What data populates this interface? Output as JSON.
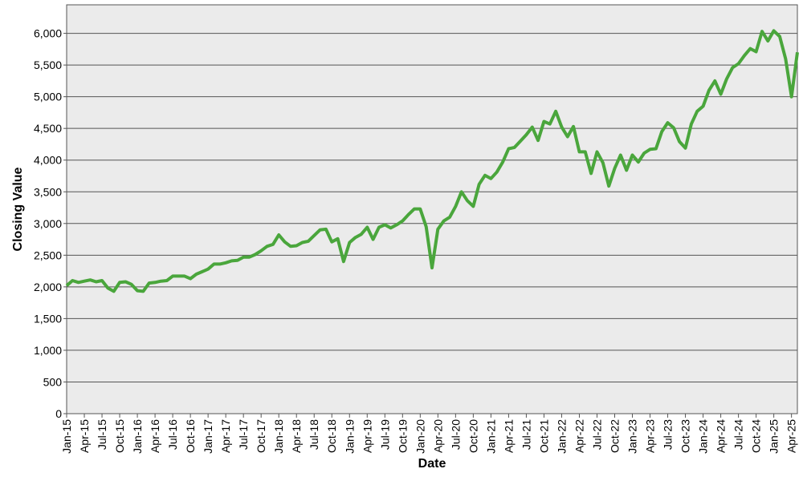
{
  "chart_data": {
    "type": "line",
    "x_label": "Date",
    "y_label": "Closing Value",
    "color": "#4aa63c",
    "grid": true,
    "x": [
      "2015-01",
      "2015-02",
      "2015-03",
      "2015-04",
      "2015-05",
      "2015-06",
      "2015-07",
      "2015-08",
      "2015-09",
      "2015-10",
      "2015-11",
      "2015-12",
      "2016-01",
      "2016-02",
      "2016-03",
      "2016-04",
      "2016-05",
      "2016-06",
      "2016-07",
      "2016-08",
      "2016-09",
      "2016-10",
      "2016-11",
      "2016-12",
      "2017-01",
      "2017-02",
      "2017-03",
      "2017-04",
      "2017-05",
      "2017-06",
      "2017-07",
      "2017-08",
      "2017-09",
      "2017-10",
      "2017-11",
      "2017-12",
      "2018-01",
      "2018-02",
      "2018-03",
      "2018-04",
      "2018-05",
      "2018-06",
      "2018-07",
      "2018-08",
      "2018-09",
      "2018-10",
      "2018-11",
      "2018-12",
      "2019-01",
      "2019-02",
      "2019-03",
      "2019-04",
      "2019-05",
      "2019-06",
      "2019-07",
      "2019-08",
      "2019-09",
      "2019-10",
      "2019-11",
      "2019-12",
      "2020-01",
      "2020-02",
      "2020-03",
      "2020-04",
      "2020-05",
      "2020-06",
      "2020-07",
      "2020-08",
      "2020-09",
      "2020-10",
      "2020-11",
      "2020-12",
      "2021-01",
      "2021-02",
      "2021-03",
      "2021-04",
      "2021-05",
      "2021-06",
      "2021-07",
      "2021-08",
      "2021-09",
      "2021-10",
      "2021-11",
      "2021-12",
      "2022-01",
      "2022-02",
      "2022-03",
      "2022-04",
      "2022-05",
      "2022-06",
      "2022-07",
      "2022-08",
      "2022-09",
      "2022-10",
      "2022-11",
      "2022-12",
      "2023-01",
      "2023-02",
      "2023-03",
      "2023-04",
      "2023-05",
      "2023-06",
      "2023-07",
      "2023-08",
      "2023-09",
      "2023-10",
      "2023-11",
      "2023-12",
      "2024-01",
      "2024-02",
      "2024-03",
      "2024-04",
      "2024-05",
      "2024-06",
      "2024-07",
      "2024-08",
      "2024-09",
      "2024-10",
      "2024-11",
      "2024-12",
      "2025-01",
      "2025-02",
      "2025-03",
      "2025-04",
      "2025-05"
    ],
    "values": [
      2020,
      2100,
      2070,
      2090,
      2110,
      2080,
      2100,
      1980,
      1930,
      2070,
      2080,
      2040,
      1940,
      1930,
      2060,
      2070,
      2090,
      2100,
      2170,
      2170,
      2170,
      2130,
      2200,
      2240,
      2280,
      2360,
      2360,
      2380,
      2410,
      2420,
      2470,
      2470,
      2510,
      2570,
      2640,
      2670,
      2820,
      2710,
      2640,
      2650,
      2700,
      2720,
      2810,
      2900,
      2910,
      2710,
      2760,
      2400,
      2700,
      2780,
      2830,
      2940,
      2750,
      2940,
      2980,
      2930,
      2980,
      3040,
      3140,
      3230,
      3230,
      2950,
      2300,
      2910,
      3040,
      3100,
      3270,
      3500,
      3360,
      3270,
      3620,
      3760,
      3710,
      3810,
      3970,
      4180,
      4200,
      4300,
      4400,
      4520,
      4310,
      4610,
      4570,
      4770,
      4520,
      4370,
      4530,
      4130,
      4130,
      3790,
      4130,
      3960,
      3590,
      3870,
      4080,
      3840,
      4080,
      3970,
      4110,
      4170,
      4180,
      4450,
      4590,
      4510,
      4290,
      4190,
      4570,
      4770,
      4850,
      5100,
      5250,
      5040,
      5280,
      5460,
      5520,
      5650,
      5760,
      5710,
      6030,
      5880,
      6040,
      5950,
      5600,
      5000,
      5700
    ],
    "xlim": [
      "2015-01",
      "2025-05"
    ],
    "ylim": [
      0,
      6450
    ],
    "yticks": [
      0,
      500,
      {
        "value": 1000,
        "label": "1,000"
      },
      {
        "value": 1500,
        "label": "1,500"
      },
      {
        "value": 2000,
        "label": "2,000"
      },
      {
        "value": 2500,
        "label": "2,500"
      },
      {
        "value": 3000,
        "label": "3,000"
      },
      {
        "value": 3500,
        "label": "3,500"
      },
      {
        "value": 4000,
        "label": "4,000"
      },
      {
        "value": 4500,
        "label": "4,500"
      },
      {
        "value": 5000,
        "label": "5,000"
      },
      {
        "value": 5500,
        "label": "5,500"
      },
      {
        "value": 6000,
        "label": "6,000"
      }
    ],
    "xticks": [
      {
        "value": "2015-01",
        "label": "Jan-15"
      },
      {
        "value": "2015-04",
        "label": "Apr-15"
      },
      {
        "value": "2015-07",
        "label": "Jul-15"
      },
      {
        "value": "2015-10",
        "label": "Oct-15"
      },
      {
        "value": "2016-01",
        "label": "Jan-16"
      },
      {
        "value": "2016-04",
        "label": "Apr-16"
      },
      {
        "value": "2016-07",
        "label": "Jul-16"
      },
      {
        "value": "2016-10",
        "label": "Oct-16"
      },
      {
        "value": "2017-01",
        "label": "Jan-17"
      },
      {
        "value": "2017-04",
        "label": "Apr-17"
      },
      {
        "value": "2017-07",
        "label": "Jul-17"
      },
      {
        "value": "2017-10",
        "label": "Oct-17"
      },
      {
        "value": "2018-01",
        "label": "Jan-18"
      },
      {
        "value": "2018-04",
        "label": "Apr-18"
      },
      {
        "value": "2018-07",
        "label": "Jul-18"
      },
      {
        "value": "2018-10",
        "label": "Oct-18"
      },
      {
        "value": "2019-01",
        "label": "Jan-19"
      },
      {
        "value": "2019-04",
        "label": "Apr-19"
      },
      {
        "value": "2019-07",
        "label": "Jul-19"
      },
      {
        "value": "2019-10",
        "label": "Oct-19"
      },
      {
        "value": "2020-01",
        "label": "Jan-20"
      },
      {
        "value": "2020-04",
        "label": "Apr-20"
      },
      {
        "value": "2020-07",
        "label": "Jul-20"
      },
      {
        "value": "2020-10",
        "label": "Oct-20"
      },
      {
        "value": "2021-01",
        "label": "Jan-21"
      },
      {
        "value": "2021-04",
        "label": "Apr-21"
      },
      {
        "value": "2021-07",
        "label": "Jul-21"
      },
      {
        "value": "2021-10",
        "label": "Oct-21"
      },
      {
        "value": "2022-01",
        "label": "Jan-22"
      },
      {
        "value": "2022-04",
        "label": "Apr-22"
      },
      {
        "value": "2022-07",
        "label": "Jul-22"
      },
      {
        "value": "2022-10",
        "label": "Oct-22"
      },
      {
        "value": "2023-01",
        "label": "Jan-23"
      },
      {
        "value": "2023-04",
        "label": "Apr-23"
      },
      {
        "value": "2023-07",
        "label": "Jul-23"
      },
      {
        "value": "2023-10",
        "label": "Oct-23"
      },
      {
        "value": "2024-01",
        "label": "Jan-24"
      },
      {
        "value": "2024-04",
        "label": "Apr-24"
      },
      {
        "value": "2024-07",
        "label": "Jul-24"
      },
      {
        "value": "2024-10",
        "label": "Oct-24"
      },
      {
        "value": "2025-01",
        "label": "Jan-25"
      },
      {
        "value": "2025-04",
        "label": "Apr-25"
      }
    ]
  }
}
